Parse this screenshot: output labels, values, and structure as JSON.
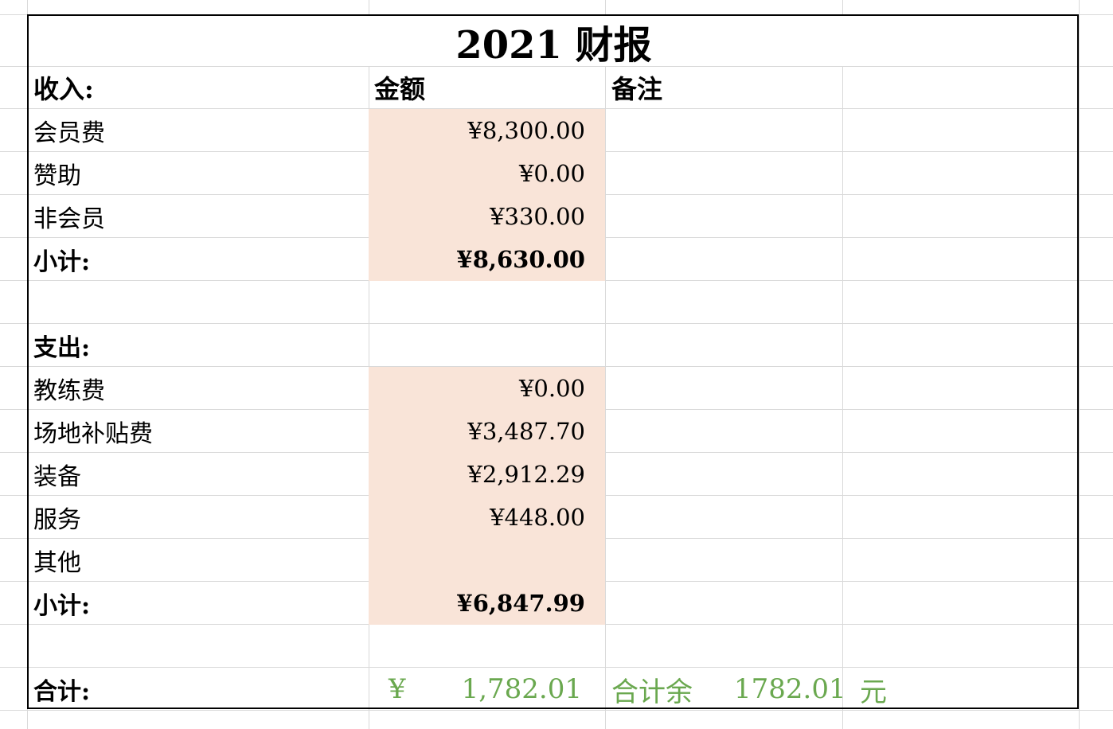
{
  "title": "2021 财报",
  "header": {
    "income": "收入:",
    "amount": "金额",
    "notes": "备注"
  },
  "income_rows": [
    {
      "label": "会员费",
      "amount": "¥8,300.00"
    },
    {
      "label": "赞助",
      "amount": "¥0.00"
    },
    {
      "label": "非会员",
      "amount": "¥330.00"
    }
  ],
  "income_subtotal": {
    "label": "小计:",
    "amount": "¥8,630.00"
  },
  "expense_header": "支出:",
  "expense_rows": [
    {
      "label": "教练费",
      "amount": "¥0.00"
    },
    {
      "label": "场地补贴费",
      "amount": "¥3,487.70"
    },
    {
      "label": "装备",
      "amount": "¥2,912.29"
    },
    {
      "label": "服务",
      "amount": "¥448.00"
    },
    {
      "label": "其他",
      "amount": ""
    }
  ],
  "expense_subtotal": {
    "label": "小计:",
    "amount": "¥6,847.99"
  },
  "total": {
    "label": "合计:",
    "currency": "¥",
    "amount": "1,782.01",
    "summary_label": "合计余",
    "summary_value": "1782.01",
    "summary_unit": "元"
  },
  "colors": {
    "shade": "#f9e4d8",
    "total_green": "#6aa84f",
    "grid": "#d9d9d9"
  }
}
